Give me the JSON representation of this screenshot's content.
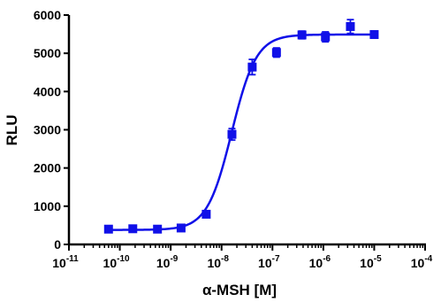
{
  "chart_data": {
    "type": "scatter",
    "title": "",
    "xlabel": "α-MSH [M]",
    "ylabel": "RLU",
    "x_scale": "log",
    "xlim": [
      1e-11,
      0.0001
    ],
    "ylim": [
      0,
      6000
    ],
    "x_ticks": [
      {
        "base": "10",
        "exp": "-11"
      },
      {
        "base": "10",
        "exp": "-10"
      },
      {
        "base": "10",
        "exp": "-9"
      },
      {
        "base": "10",
        "exp": "-8"
      },
      {
        "base": "10",
        "exp": "-7"
      },
      {
        "base": "10",
        "exp": "-6"
      },
      {
        "base": "10",
        "exp": "-5"
      },
      {
        "base": "10",
        "exp": "-4"
      }
    ],
    "y_ticks": [
      "0",
      "1000",
      "2000",
      "3000",
      "4000",
      "5000",
      "6000"
    ],
    "grid": false,
    "series": [
      {
        "color": "#1010e8",
        "points": [
          {
            "x": 6e-11,
            "y": 400,
            "err": 40
          },
          {
            "x": 1.8e-10,
            "y": 410,
            "err": 30
          },
          {
            "x": 5.5e-10,
            "y": 400,
            "err": 30
          },
          {
            "x": 1.6e-09,
            "y": 430,
            "err": 30
          },
          {
            "x": 5e-09,
            "y": 790,
            "err": 50
          },
          {
            "x": 1.6e-08,
            "y": 2880,
            "err": 150
          },
          {
            "x": 4e-08,
            "y": 4640,
            "err": 200
          },
          {
            "x": 1.2e-07,
            "y": 5020,
            "err": 120
          },
          {
            "x": 3.8e-07,
            "y": 5480,
            "err": 100
          },
          {
            "x": 1.1e-06,
            "y": 5430,
            "err": 130
          },
          {
            "x": 3.4e-06,
            "y": 5700,
            "err": 180
          },
          {
            "x": 1e-05,
            "y": 5490,
            "err": 90
          }
        ],
        "fit": {
          "bottom": 380,
          "top": 5490,
          "logEC50": -7.8,
          "hill": 1.8
        }
      }
    ]
  }
}
